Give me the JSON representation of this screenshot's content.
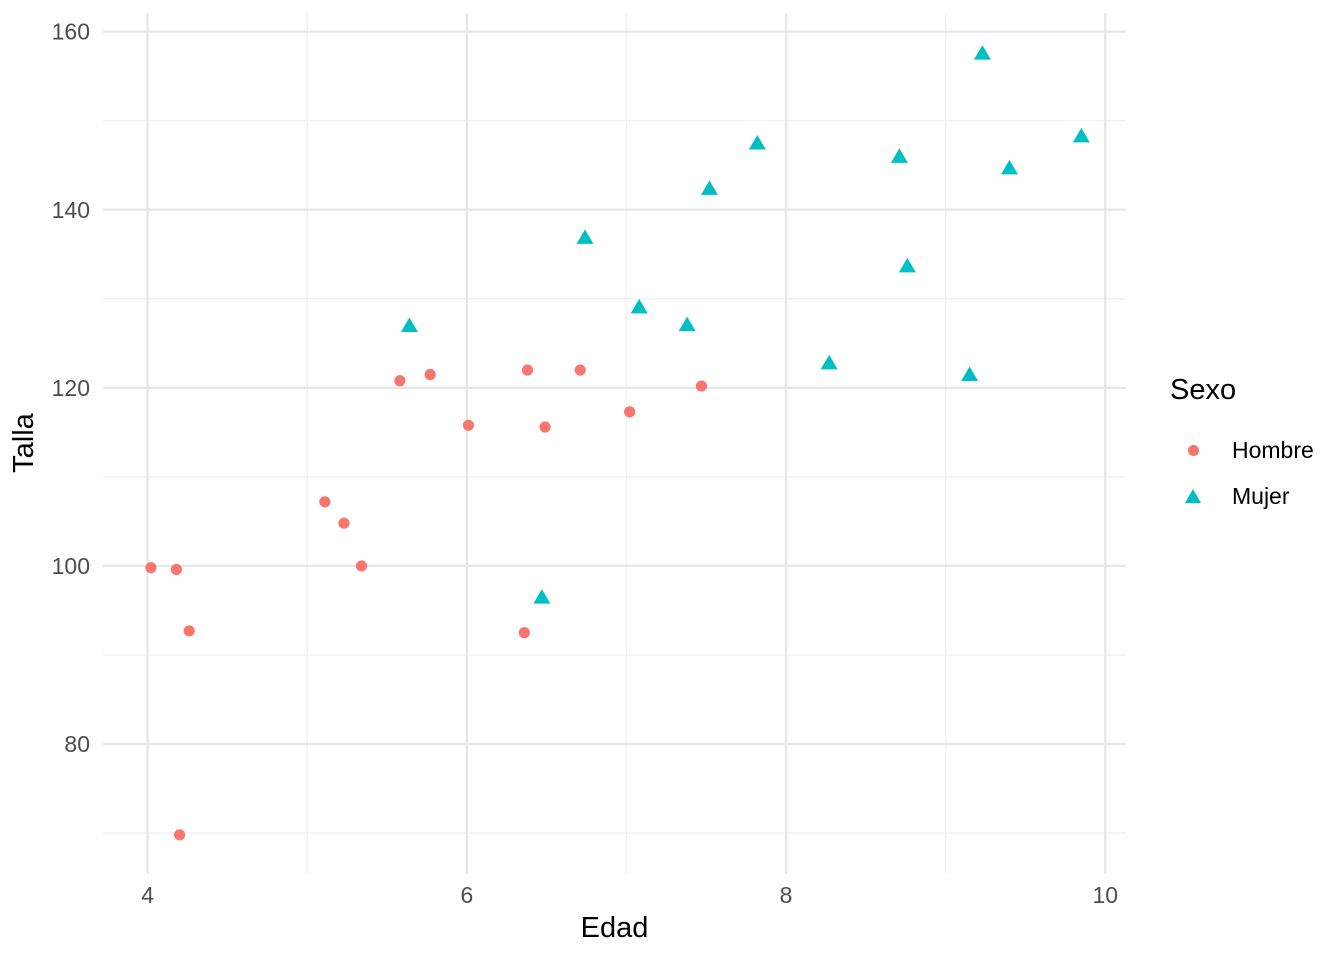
{
  "chart_data": {
    "type": "scatter",
    "title": "",
    "xlabel": "Edad",
    "ylabel": "Talla",
    "legend": {
      "title": "Sexo",
      "position": "right"
    },
    "axes": {
      "xlim": [
        3.72,
        10.13
      ],
      "ylim": [
        65.4,
        162.1
      ],
      "x_major_ticks": [
        4,
        6,
        8,
        10
      ],
      "x_minor_ticks": [
        5,
        7,
        9
      ],
      "y_major_ticks": [
        80,
        100,
        120,
        140,
        160
      ],
      "y_minor_ticks": [
        70,
        90,
        110,
        130,
        150
      ],
      "grid": "major and minor gridlines, no axis lines, white panel"
    },
    "style_colors": {
      "major_grid": "#E6E6E6",
      "minor_grid": "#F1F1F1",
      "tick_label": "#4D4D4D",
      "axis_title": "#000000",
      "background": "#FFFFFF"
    },
    "series": [
      {
        "name": "Hombre",
        "marker": "circle",
        "color": "#F8766D",
        "points": [
          [
            4.02,
            99.8
          ],
          [
            4.18,
            99.6
          ],
          [
            4.26,
            92.7
          ],
          [
            4.2,
            69.8
          ],
          [
            5.11,
            107.2
          ],
          [
            5.23,
            104.8
          ],
          [
            5.34,
            100.0
          ],
          [
            5.58,
            120.8
          ],
          [
            5.77,
            121.5
          ],
          [
            6.01,
            115.8
          ],
          [
            6.36,
            92.5
          ],
          [
            6.38,
            122.0
          ],
          [
            6.49,
            115.6
          ],
          [
            6.71,
            122.0
          ],
          [
            7.02,
            117.3
          ],
          [
            7.47,
            120.2
          ]
        ]
      },
      {
        "name": "Mujer",
        "marker": "triangle",
        "color": "#00BFC4",
        "points": [
          [
            5.64,
            127.0
          ],
          [
            6.47,
            96.5
          ],
          [
            6.74,
            136.9
          ],
          [
            7.08,
            129.1
          ],
          [
            7.38,
            127.1
          ],
          [
            7.52,
            142.4
          ],
          [
            7.82,
            147.5
          ],
          [
            8.27,
            122.8
          ],
          [
            8.71,
            146.0
          ],
          [
            8.76,
            133.7
          ],
          [
            9.15,
            121.5
          ],
          [
            9.23,
            157.6
          ],
          [
            9.4,
            144.7
          ],
          [
            9.85,
            148.3
          ]
        ]
      }
    ]
  }
}
